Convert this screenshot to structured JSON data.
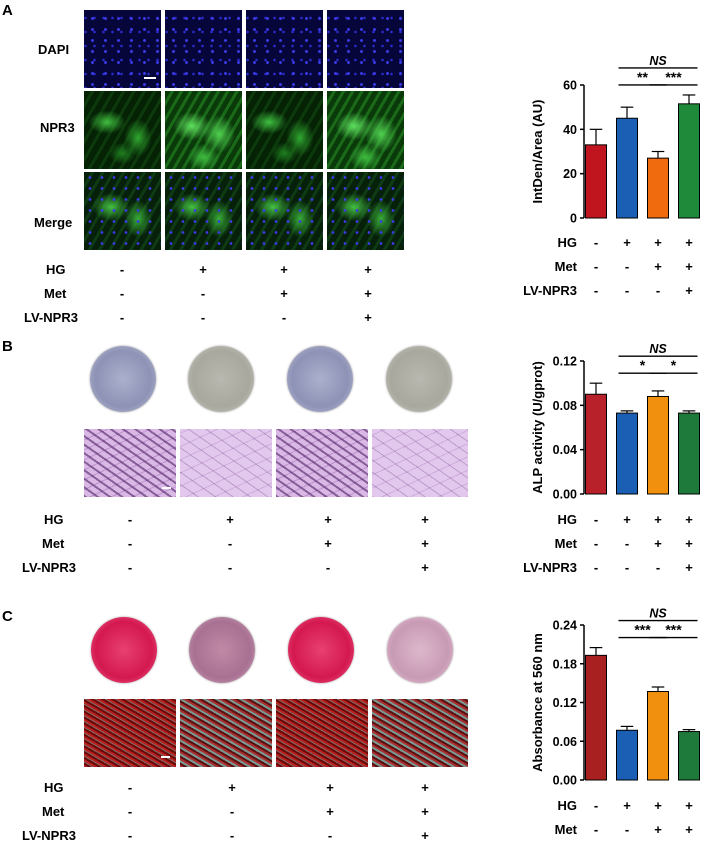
{
  "panels": [
    {
      "id": "A",
      "letter": "A",
      "row_labels": [
        "DAPI",
        "NPR3",
        "Merge"
      ],
      "left_conditions": [
        {
          "name": "HG",
          "symbols": [
            "-",
            "+",
            "+",
            "+"
          ]
        },
        {
          "name": "Met",
          "symbols": [
            "-",
            "-",
            "+",
            "+"
          ]
        },
        {
          "name": "LV-NPR3",
          "symbols": [
            "-",
            "-",
            "-",
            "+"
          ]
        }
      ]
    },
    {
      "id": "B",
      "letter": "B",
      "left_conditions": [
        {
          "name": "HG",
          "symbols": [
            "-",
            "+",
            "+",
            "+"
          ]
        },
        {
          "name": "Met",
          "symbols": [
            "-",
            "-",
            "+",
            "+"
          ]
        },
        {
          "name": "LV-NPR3",
          "symbols": [
            "-",
            "-",
            "-",
            "+"
          ]
        }
      ]
    },
    {
      "id": "C",
      "letter": "C",
      "left_conditions": [
        {
          "name": "HG",
          "symbols": [
            "-",
            "+",
            "+",
            "+"
          ]
        },
        {
          "name": "Met",
          "symbols": [
            "-",
            "-",
            "+",
            "+"
          ]
        },
        {
          "name": "LV-NPR3",
          "symbols": [
            "-",
            "-",
            "-",
            "+"
          ]
        }
      ]
    }
  ],
  "chart_data": [
    {
      "type": "bar",
      "panel": "A",
      "ylabel": "IntDen/Area (AU)",
      "ylim": [
        0,
        60
      ],
      "yticks": [
        "0",
        "20",
        "40",
        "60"
      ],
      "values": [
        33,
        45,
        27,
        51.5
      ],
      "errors": [
        7,
        5,
        3,
        4
      ],
      "colors": [
        "#c0141e",
        "#1a5fb4",
        "#f06a0e",
        "#1e8a3a"
      ],
      "conditions": [
        {
          "name": "HG",
          "symbols": [
            "-",
            "+",
            "+",
            "+"
          ]
        },
        {
          "name": "Met",
          "symbols": [
            "-",
            "-",
            "+",
            "+"
          ]
        },
        {
          "name": "LV-NPR3",
          "symbols": [
            "-",
            "-",
            "-",
            "+"
          ]
        }
      ],
      "significance": [
        {
          "from": 1,
          "to": 3,
          "label": "NS",
          "level": 2
        },
        {
          "from": 1,
          "to": 2,
          "label": "**",
          "level": 1
        },
        {
          "from": 2,
          "to": 3,
          "label": "***",
          "level": 1
        }
      ]
    },
    {
      "type": "bar",
      "panel": "B",
      "ylabel": "ALP activity (U/gprot)",
      "ylim": [
        0,
        0.12
      ],
      "yticks": [
        "0.00",
        "0.04",
        "0.08",
        "0.12"
      ],
      "values": [
        0.09,
        0.073,
        0.088,
        0.073
      ],
      "errors": [
        0.01,
        0.002,
        0.005,
        0.002
      ],
      "colors": [
        "#b8202a",
        "#1a5fb4",
        "#f0900e",
        "#1e7a3a"
      ],
      "conditions": [
        {
          "name": "HG",
          "symbols": [
            "-",
            "+",
            "+",
            "+"
          ]
        },
        {
          "name": "Met",
          "symbols": [
            "-",
            "-",
            "+",
            "+"
          ]
        },
        {
          "name": "LV-NPR3",
          "symbols": [
            "-",
            "-",
            "-",
            "+"
          ]
        }
      ],
      "significance": [
        {
          "from": 1,
          "to": 3,
          "label": "NS",
          "level": 2
        },
        {
          "from": 1,
          "to": 2,
          "label": "*",
          "level": 1
        },
        {
          "from": 2,
          "to": 3,
          "label": "*",
          "level": 1
        }
      ]
    },
    {
      "type": "bar",
      "panel": "C",
      "ylabel": "Absorbance at 560 nm",
      "ylim": [
        0,
        0.24
      ],
      "yticks": [
        "0.00",
        "0.06",
        "0.12",
        "0.18",
        "0.24"
      ],
      "values": [
        0.193,
        0.077,
        0.137,
        0.075
      ],
      "errors": [
        0.012,
        0.006,
        0.007,
        0.003
      ],
      "colors": [
        "#a82020",
        "#1a5fb4",
        "#f0900e",
        "#1e7a3a"
      ],
      "conditions": [
        {
          "name": "HG",
          "symbols": [
            "-",
            "+",
            "+",
            "+"
          ]
        },
        {
          "name": "Met",
          "symbols": [
            "-",
            "-",
            "+",
            "+"
          ]
        },
        {
          "name": "LV-NPR3",
          "symbols": [
            "-",
            "-",
            "-",
            "+"
          ]
        }
      ],
      "significance": [
        {
          "from": 1,
          "to": 3,
          "label": "NS",
          "level": 2
        },
        {
          "from": 1,
          "to": 2,
          "label": "***",
          "level": 1
        },
        {
          "from": 2,
          "to": 3,
          "label": "***",
          "level": 1
        }
      ]
    }
  ]
}
